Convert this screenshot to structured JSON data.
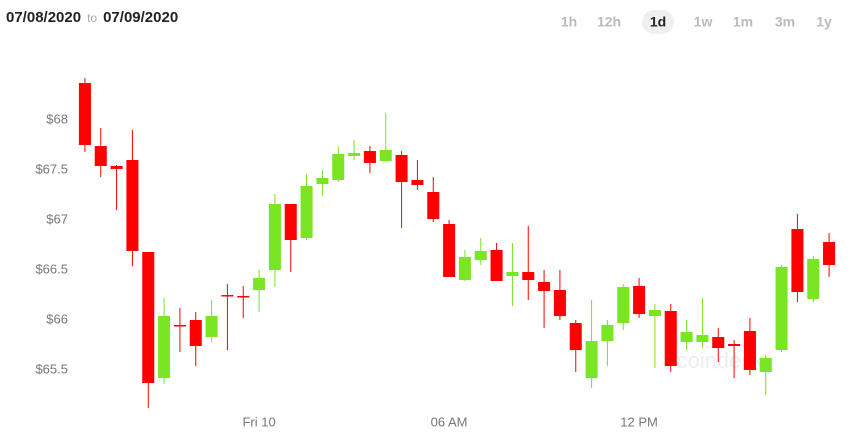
{
  "chart_data": {
    "type": "candlestick",
    "date_from": "07/08/2020",
    "date_separator": "to",
    "date_to": "07/09/2020",
    "ranges": [
      "1h",
      "12h",
      "1d",
      "1w",
      "1m",
      "3m",
      "1y"
    ],
    "selected_range": 2,
    "watermark": "coindesk",
    "up_color": "#79e523",
    "down_color": "#ff0000",
    "ylim": [
      65.1,
      68.5
    ],
    "yticks": [
      {
        "value": 65.5,
        "label": "$65.5"
      },
      {
        "value": 66,
        "label": "$66"
      },
      {
        "value": 66.5,
        "label": "$66.5"
      },
      {
        "value": 67,
        "label": "$67"
      },
      {
        "value": 67.5,
        "label": "$67.5"
      },
      {
        "value": 68,
        "label": "$68"
      }
    ],
    "xlim": [
      -0.5,
      47.5
    ],
    "xticks": [
      {
        "value": 11,
        "label": "Fri 10"
      },
      {
        "value": 23,
        "label": "06 AM"
      },
      {
        "value": 35,
        "label": "12 PM"
      }
    ],
    "open": [
      68.37,
      67.74,
      67.54,
      67.6,
      66.68,
      65.42,
      65.95,
      66.0,
      65.83,
      66.25,
      66.24,
      66.3,
      66.5,
      67.16,
      66.82,
      67.36,
      67.4,
      67.64,
      67.69,
      67.59,
      67.65,
      67.4,
      67.28,
      66.96,
      66.4,
      66.6,
      66.7,
      66.44,
      66.48,
      66.38,
      66.3,
      65.97,
      65.42,
      65.79,
      65.97,
      66.34,
      66.04,
      66.09,
      65.78,
      65.78,
      65.83,
      65.76,
      65.89,
      65.48,
      65.7,
      66.91,
      66.21,
      66.78
    ],
    "high": [
      68.42,
      67.92,
      67.55,
      67.9,
      66.68,
      66.22,
      66.12,
      66.08,
      66.2,
      66.36,
      66.34,
      66.5,
      67.26,
      67.16,
      67.46,
      67.5,
      67.74,
      67.8,
      67.74,
      68.07,
      67.69,
      67.6,
      67.43,
      67.0,
      66.7,
      66.82,
      66.77,
      66.77,
      66.94,
      66.5,
      66.5,
      66.0,
      66.2,
      66.0,
      66.36,
      66.42,
      66.16,
      66.16,
      66.0,
      66.22,
      65.92,
      65.8,
      66.02,
      65.65,
      66.55,
      67.06,
      66.64,
      66.87
    ],
    "low": [
      67.68,
      67.43,
      67.1,
      66.54,
      65.12,
      65.36,
      65.68,
      65.54,
      65.78,
      65.7,
      66.02,
      66.08,
      66.33,
      66.48,
      66.8,
      67.24,
      67.38,
      67.6,
      67.47,
      67.58,
      66.92,
      67.3,
      66.98,
      66.43,
      66.39,
      66.55,
      66.39,
      66.14,
      66.2,
      65.92,
      66.0,
      65.48,
      65.32,
      65.54,
      65.9,
      66.02,
      65.52,
      65.48,
      65.7,
      65.72,
      65.58,
      65.42,
      65.45,
      65.25,
      65.68,
      66.18,
      66.18,
      66.43
    ],
    "close": [
      67.75,
      67.54,
      67.51,
      66.69,
      65.37,
      66.04,
      65.94,
      65.74,
      66.04,
      66.24,
      66.23,
      66.42,
      67.16,
      66.8,
      67.34,
      67.42,
      67.66,
      67.67,
      67.57,
      67.7,
      67.38,
      67.35,
      67.01,
      66.43,
      66.63,
      66.69,
      66.39,
      66.48,
      66.4,
      66.29,
      66.04,
      65.7,
      65.79,
      65.95,
      66.33,
      66.06,
      66.1,
      65.54,
      65.88,
      65.85,
      65.72,
      65.74,
      65.5,
      65.62,
      66.53,
      66.28,
      66.61,
      66.55
    ]
  }
}
